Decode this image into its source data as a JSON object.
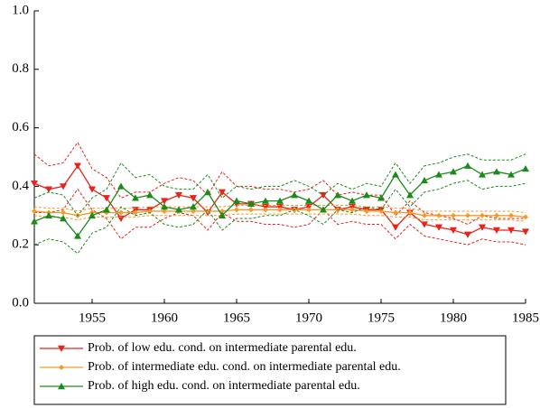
{
  "chart_data": {
    "type": "line",
    "x": [
      1951,
      1952,
      1953,
      1954,
      1955,
      1956,
      1957,
      1958,
      1959,
      1960,
      1961,
      1962,
      1963,
      1964,
      1965,
      1966,
      1967,
      1968,
      1969,
      1970,
      1971,
      1972,
      1973,
      1974,
      1975,
      1976,
      1977,
      1978,
      1979,
      1980,
      1981,
      1982,
      1983,
      1984,
      1985
    ],
    "xlim": [
      1951,
      1985
    ],
    "xticks": [
      1955,
      1960,
      1965,
      1970,
      1975,
      1980,
      1985
    ],
    "ylim": [
      0,
      1
    ],
    "yticks": [
      {
        "value": 0,
        "label": "0.0"
      },
      {
        "value": 0.2,
        "label": "0.2"
      },
      {
        "value": 0.4,
        "label": "0.4"
      },
      {
        "value": 0.6,
        "label": "0.6"
      },
      {
        "value": 0.8,
        "label": "0.8"
      },
      {
        "value": 1,
        "label": "1.0"
      }
    ],
    "series": [
      {
        "name": "Prob. of low edu. cond. on intermediate parental edu.",
        "color": "#e8231b",
        "marker": "triangle-down",
        "values": [
          0.41,
          0.39,
          0.4,
          0.47,
          0.39,
          0.36,
          0.29,
          0.32,
          0.32,
          0.35,
          0.37,
          0.36,
          0.31,
          0.38,
          0.34,
          0.34,
          0.33,
          0.33,
          0.32,
          0.33,
          0.37,
          0.32,
          0.33,
          0.32,
          0.32,
          0.26,
          0.31,
          0.27,
          0.26,
          0.25,
          0.235,
          0.26,
          0.25,
          0.25,
          0.245
        ],
        "upper": [
          0.51,
          0.47,
          0.48,
          0.55,
          0.46,
          0.43,
          0.36,
          0.38,
          0.38,
          0.41,
          0.43,
          0.42,
          0.37,
          0.45,
          0.4,
          0.4,
          0.39,
          0.39,
          0.38,
          0.39,
          0.42,
          0.37,
          0.38,
          0.37,
          0.37,
          0.3,
          0.35,
          0.31,
          0.3,
          0.29,
          0.27,
          0.3,
          0.29,
          0.29,
          0.29
        ],
        "lower": [
          0.31,
          0.31,
          0.32,
          0.39,
          0.32,
          0.29,
          0.22,
          0.26,
          0.26,
          0.29,
          0.31,
          0.3,
          0.25,
          0.31,
          0.28,
          0.28,
          0.27,
          0.27,
          0.26,
          0.27,
          0.32,
          0.27,
          0.28,
          0.27,
          0.27,
          0.22,
          0.27,
          0.23,
          0.22,
          0.21,
          0.2,
          0.22,
          0.21,
          0.21,
          0.2
        ]
      },
      {
        "name": "Prob. of intermediate edu. cond. on intermediate parental edu.",
        "color": "#f39a2a",
        "marker": "diamond",
        "values": [
          0.315,
          0.31,
          0.31,
          0.3,
          0.31,
          0.31,
          0.31,
          0.31,
          0.315,
          0.315,
          0.315,
          0.315,
          0.315,
          0.315,
          0.32,
          0.32,
          0.32,
          0.32,
          0.32,
          0.32,
          0.32,
          0.32,
          0.32,
          0.315,
          0.315,
          0.31,
          0.31,
          0.3,
          0.3,
          0.3,
          0.3,
          0.3,
          0.3,
          0.3,
          0.295
        ],
        "upper": [
          0.33,
          0.325,
          0.325,
          0.315,
          0.325,
          0.325,
          0.325,
          0.325,
          0.33,
          0.33,
          0.33,
          0.33,
          0.33,
          0.33,
          0.335,
          0.335,
          0.335,
          0.335,
          0.335,
          0.335,
          0.335,
          0.335,
          0.335,
          0.33,
          0.33,
          0.325,
          0.325,
          0.315,
          0.315,
          0.315,
          0.315,
          0.315,
          0.315,
          0.315,
          0.31
        ],
        "lower": [
          0.3,
          0.295,
          0.295,
          0.285,
          0.295,
          0.295,
          0.295,
          0.295,
          0.3,
          0.3,
          0.3,
          0.3,
          0.3,
          0.3,
          0.305,
          0.305,
          0.305,
          0.305,
          0.305,
          0.305,
          0.305,
          0.305,
          0.305,
          0.3,
          0.3,
          0.295,
          0.295,
          0.285,
          0.285,
          0.285,
          0.285,
          0.285,
          0.285,
          0.285,
          0.28
        ]
      },
      {
        "name": "Prob. of high edu. cond. on intermediate parental edu.",
        "color": "#1a8a1a",
        "marker": "triangle-up",
        "values": [
          0.28,
          0.3,
          0.29,
          0.23,
          0.3,
          0.32,
          0.4,
          0.36,
          0.37,
          0.33,
          0.32,
          0.33,
          0.38,
          0.3,
          0.35,
          0.34,
          0.35,
          0.35,
          0.37,
          0.35,
          0.32,
          0.37,
          0.35,
          0.37,
          0.36,
          0.44,
          0.37,
          0.42,
          0.44,
          0.45,
          0.47,
          0.44,
          0.45,
          0.44,
          0.46
        ],
        "upper": [
          0.36,
          0.38,
          0.37,
          0.3,
          0.36,
          0.39,
          0.48,
          0.43,
          0.44,
          0.4,
          0.39,
          0.39,
          0.44,
          0.36,
          0.4,
          0.39,
          0.4,
          0.4,
          0.42,
          0.4,
          0.37,
          0.41,
          0.39,
          0.41,
          0.4,
          0.48,
          0.41,
          0.47,
          0.48,
          0.5,
          0.51,
          0.49,
          0.49,
          0.49,
          0.51
        ],
        "lower": [
          0.2,
          0.22,
          0.21,
          0.17,
          0.24,
          0.26,
          0.33,
          0.3,
          0.31,
          0.27,
          0.26,
          0.27,
          0.32,
          0.25,
          0.29,
          0.29,
          0.3,
          0.3,
          0.32,
          0.3,
          0.27,
          0.32,
          0.31,
          0.33,
          0.32,
          0.39,
          0.33,
          0.38,
          0.39,
          0.41,
          0.42,
          0.39,
          0.4,
          0.4,
          0.41
        ]
      }
    ]
  }
}
